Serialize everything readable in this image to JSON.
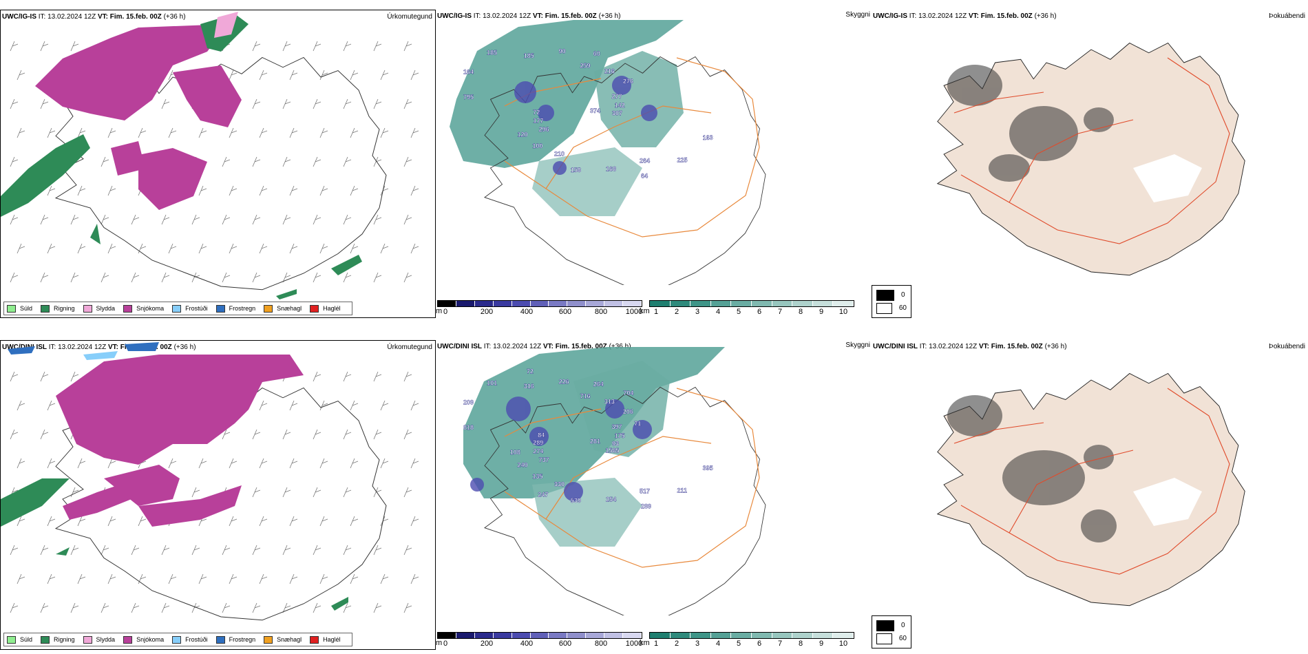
{
  "rows": [
    {
      "id": "uwc-ig-is",
      "model": "UWC/IG-IS",
      "it_label": "IT:",
      "it_value": "13.02.2024 12Z",
      "vt_label": "VT:",
      "vt_value": "Fim. 15.feb. 00Z",
      "lead": "(+36 h)",
      "panel_names": [
        "Úrkomutegund",
        "Skyggni",
        "Þokuábendi"
      ],
      "cloud_labels": [
        "374",
        "296",
        "259",
        "264",
        "795",
        "277",
        "210",
        "185",
        "163",
        "177",
        "216",
        "168",
        "164",
        "142",
        "100",
        "90",
        "225",
        "72",
        "276",
        "158",
        "185",
        "307",
        "120",
        "60",
        "64"
      ]
    },
    {
      "id": "uwc-dini-isl",
      "model": "UWC/DINI ISL",
      "it_label": "IT:",
      "it_value": "13.02.2024 12Z",
      "vt_label": "VT:",
      "vt_value": "Fim. 15.feb. 00Z",
      "lead": "(+36 h)",
      "panel_names": [
        "Úrkomutegund",
        "Skyggni",
        "Þokuábendi"
      ],
      "cloud_labels": [
        "281",
        "737",
        "716",
        "517",
        "818",
        "397",
        "330",
        "316",
        "395",
        "274",
        "313",
        "254",
        "209",
        "175",
        "135",
        "226",
        "211",
        "289",
        "206",
        "539",
        "101",
        "93",
        "240",
        "264",
        "289",
        "84",
        "71",
        "247",
        "72",
        "1585",
        "108",
        "704"
      ]
    }
  ],
  "precip_legend": [
    {
      "label": "Súld",
      "color": "#90ee90"
    },
    {
      "label": "Rigning",
      "color": "#2e8b57"
    },
    {
      "label": "Slydda",
      "color": "#f0a8d8"
    },
    {
      "label": "Snjókoma",
      "color": "#b8409a"
    },
    {
      "label": "Frostúði",
      "color": "#87cefa"
    },
    {
      "label": "Frostregn",
      "color": "#2f6fbf"
    },
    {
      "label": "Snæhagl",
      "color": "#f0a020"
    },
    {
      "label": "Haglél",
      "color": "#e02020"
    }
  ],
  "ceiling_bar": {
    "unit": "m",
    "ticks": [
      "0",
      "200",
      "400",
      "600",
      "800",
      "1000"
    ],
    "colors": [
      "#000000",
      "#1a1a6e",
      "#2a2a8c",
      "#3a3aa0",
      "#4c4cb0",
      "#6060b8",
      "#7a7ac4",
      "#9090cc",
      "#a8a8d8",
      "#c0c0e4",
      "#d8d8f0"
    ]
  },
  "visibility_bar": {
    "unit": "km",
    "ticks": [
      "1",
      "2",
      "3",
      "4",
      "5",
      "6",
      "7",
      "8",
      "9",
      "10"
    ],
    "colors": [
      "#1f7f70",
      "#2f8a7c",
      "#3f9588",
      "#55a196",
      "#6aada3",
      "#80b9b0",
      "#97c6be",
      "#aed2cc",
      "#c6dfdb",
      "#dfedeb"
    ]
  },
  "fog_key": [
    {
      "label": "0",
      "color": "#000000"
    },
    {
      "label": "60",
      "color": "#ffffff"
    }
  ]
}
